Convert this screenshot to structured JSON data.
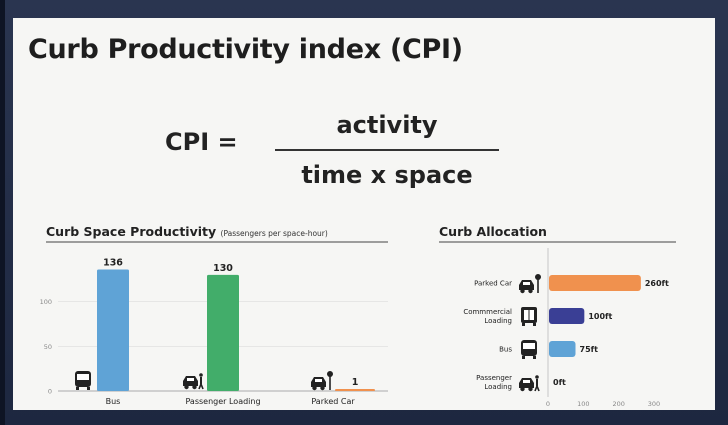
{
  "title": "Curb Productivity index (CPI)",
  "formula": {
    "lhs": "CPI =",
    "numerator": "activity",
    "denominator": "time x space"
  },
  "chart_data": [
    {
      "type": "bar",
      "title": "Curb Space Productivity",
      "subtitle": "(Passengers per space-hour)",
      "categories": [
        "Bus",
        "Passenger Loading",
        "Parked Car"
      ],
      "values": [
        136,
        130,
        1
      ],
      "value_labels": [
        "136",
        "130",
        "1"
      ],
      "ylim": [
        0,
        150
      ],
      "yticks": [
        0,
        50,
        100
      ],
      "colors": [
        "#5fa3d6",
        "#42ad6a",
        "#f0914e"
      ],
      "icons": [
        "bus-icon",
        "car-passenger-icon",
        "parked-car-icon"
      ],
      "grid": true
    },
    {
      "type": "bar",
      "orientation": "horizontal",
      "title": "Curb Allocation",
      "categories": [
        [
          "Parked Car"
        ],
        [
          "Commmercial",
          "Loading"
        ],
        [
          "Bus"
        ],
        [
          "Passenger",
          "Loading"
        ]
      ],
      "values": [
        260,
        100,
        75,
        0
      ],
      "value_labels": [
        "260ft",
        "100ft",
        "75ft",
        "0ft"
      ],
      "xlim": [
        0,
        300
      ],
      "xticks": [
        0,
        100,
        200,
        300
      ],
      "colors": [
        "#f0914e",
        "#3a3f95",
        "#5fa3d6",
        "#999999"
      ],
      "icons": [
        "parked-car-icon",
        "truck-icon",
        "bus-icon",
        "car-passenger-icon"
      ]
    }
  ]
}
